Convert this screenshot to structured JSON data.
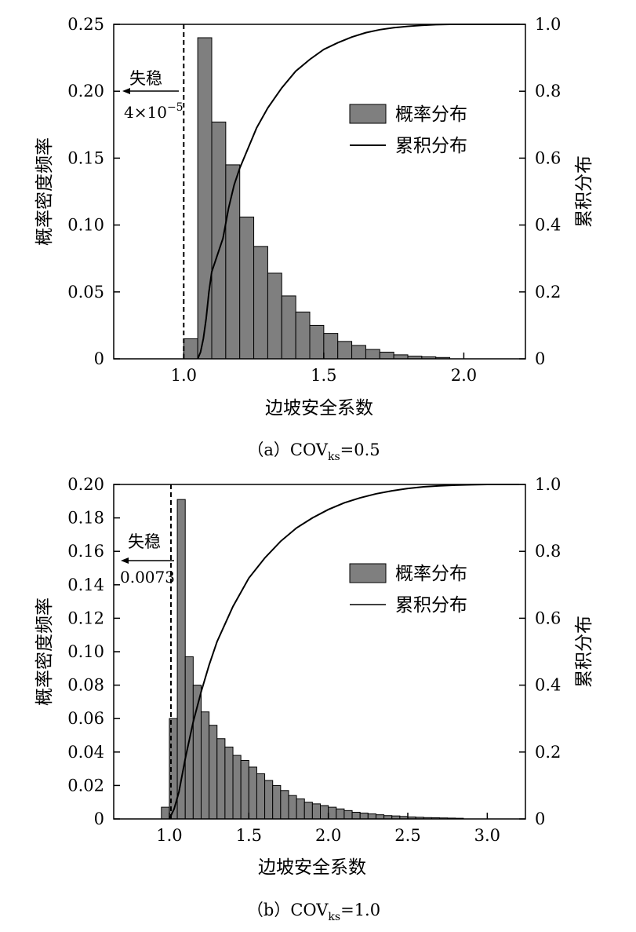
{
  "chart_data": [
    {
      "type": "bar",
      "panel": "a",
      "caption": {
        "prefix": "（a）COV",
        "sub": "ks",
        "suffix": "=0.5"
      },
      "xlabel": "边坡安全系数",
      "ylabel_left": "概率密度频率",
      "ylabel_right": "累积分布",
      "xlim": [
        0.75,
        2.22
      ],
      "ylim_left": [
        0,
        0.25
      ],
      "ylim_right": [
        0,
        1.0
      ],
      "xticks": [
        1.0,
        1.5,
        2.0
      ],
      "xtick_labels": [
        "1.0",
        "1.5",
        "2.0"
      ],
      "yticks_left": [
        0,
        0.05,
        0.1,
        0.15,
        0.2,
        0.25
      ],
      "ytick_labels_left": [
        "0",
        "0.05",
        "0.10",
        "0.15",
        "0.20",
        "0.25"
      ],
      "yticks_right": [
        0,
        0.2,
        0.4,
        0.6,
        0.8,
        1.0
      ],
      "ytick_labels_right": [
        "0",
        "0.2",
        "0.4",
        "0.6",
        "0.8",
        "1.0"
      ],
      "bin_start": 1.0,
      "bin_width": 0.05,
      "values": [
        0.015,
        0.24,
        0.177,
        0.145,
        0.106,
        0.084,
        0.064,
        0.047,
        0.035,
        0.025,
        0.019,
        0.013,
        0.01,
        0.007,
        0.005,
        0.003,
        0.002,
        0.0015,
        0.001
      ],
      "cdf": {
        "x": [
          1.05,
          1.06,
          1.07,
          1.08,
          1.09,
          1.1,
          1.12,
          1.14,
          1.16,
          1.18,
          1.2,
          1.23,
          1.26,
          1.3,
          1.35,
          1.4,
          1.45,
          1.5,
          1.55,
          1.6,
          1.65,
          1.7,
          1.75,
          1.8,
          1.85,
          1.9,
          1.95,
          2.0,
          2.2
        ],
        "y": [
          0.0,
          0.02,
          0.06,
          0.12,
          0.2,
          0.26,
          0.31,
          0.36,
          0.45,
          0.52,
          0.57,
          0.63,
          0.69,
          0.75,
          0.81,
          0.86,
          0.895,
          0.925,
          0.945,
          0.962,
          0.975,
          0.984,
          0.99,
          0.994,
          0.997,
          0.999,
          1.0,
          1.0,
          1.0
        ]
      },
      "threshold": 1.0,
      "annotation": {
        "label": "失稳",
        "value": "4×10",
        "exponent": "−5"
      },
      "legend": {
        "bar": "概率分布",
        "line": "累积分布",
        "position": "upper-right"
      }
    },
    {
      "type": "bar",
      "panel": "b",
      "caption": {
        "prefix": "（b）COV",
        "sub": "ks",
        "suffix": "=1.0"
      },
      "xlabel": "边坡安全系数",
      "ylabel_left": "概率密度频率",
      "ylabel_right": "累积分布",
      "xlim": [
        0.65,
        3.24
      ],
      "ylim_left": [
        0,
        0.2
      ],
      "ylim_right": [
        0,
        1.0
      ],
      "xticks": [
        1.0,
        1.5,
        2.0,
        2.5,
        3.0
      ],
      "xtick_labels": [
        "1.0",
        "1.5",
        "2.0",
        "2.5",
        "3.0"
      ],
      "yticks_left": [
        0,
        0.02,
        0.04,
        0.06,
        0.08,
        0.1,
        0.12,
        0.14,
        0.16,
        0.18,
        0.2
      ],
      "ytick_labels_left": [
        "0",
        "0.02",
        "0.04",
        "0.06",
        "0.08",
        "0.10",
        "0.12",
        "0.14",
        "0.16",
        "0.18",
        "0.20"
      ],
      "yticks_right": [
        0,
        0.2,
        0.4,
        0.6,
        0.8,
        1.0
      ],
      "ytick_labels_right": [
        "0",
        "0.2",
        "0.4",
        "0.6",
        "0.8",
        "1.0"
      ],
      "bin_start": 0.95,
      "bin_width": 0.05,
      "values": [
        0.007,
        0.06,
        0.191,
        0.097,
        0.08,
        0.064,
        0.056,
        0.048,
        0.043,
        0.038,
        0.035,
        0.031,
        0.027,
        0.023,
        0.02,
        0.017,
        0.014,
        0.012,
        0.01,
        0.009,
        0.008,
        0.007,
        0.006,
        0.005,
        0.004,
        0.0035,
        0.003,
        0.0025,
        0.002,
        0.0018,
        0.0015,
        0.0012,
        0.001,
        0.0008,
        0.0007,
        0.0006,
        0.0005,
        0.0004
      ],
      "cdf": {
        "x": [
          1.0,
          1.03,
          1.06,
          1.1,
          1.15,
          1.2,
          1.25,
          1.3,
          1.4,
          1.5,
          1.6,
          1.7,
          1.8,
          1.9,
          2.0,
          2.1,
          2.2,
          2.3,
          2.4,
          2.5,
          2.6,
          2.7,
          2.8,
          2.9,
          3.0,
          3.2
        ],
        "y": [
          0.0,
          0.03,
          0.08,
          0.18,
          0.29,
          0.38,
          0.46,
          0.53,
          0.635,
          0.72,
          0.78,
          0.83,
          0.87,
          0.9,
          0.925,
          0.945,
          0.96,
          0.972,
          0.981,
          0.988,
          0.993,
          0.996,
          0.998,
          0.999,
          1.0,
          1.0
        ]
      },
      "threshold": 1.01,
      "annotation": {
        "label": "失稳",
        "value": "0.0073",
        "exponent": ""
      },
      "legend": {
        "bar": "概率分布",
        "line": "累积分布",
        "position": "upper-right"
      }
    }
  ]
}
